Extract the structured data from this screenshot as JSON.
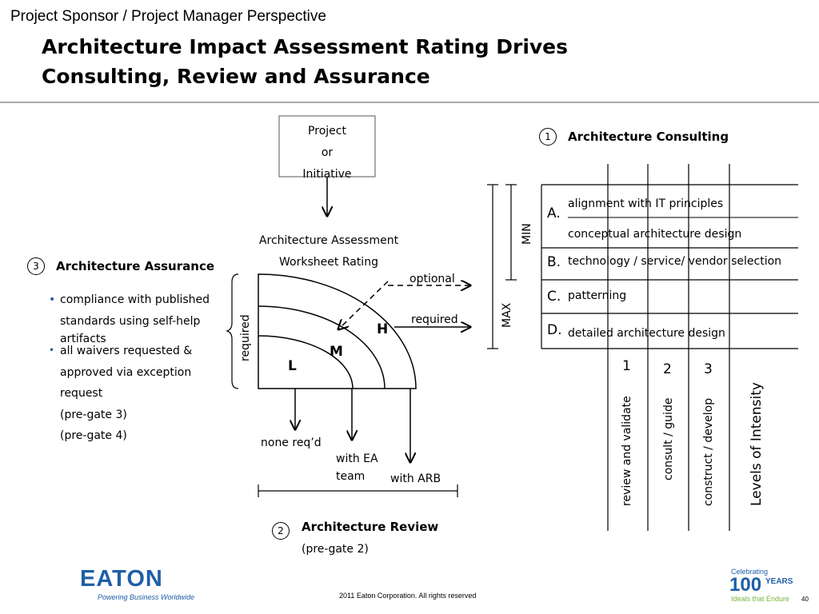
{
  "header": {
    "subtitle": "Project Sponsor / Project Manager Perspective",
    "title_line1": "Architecture Impact Assessment Rating Drives",
    "title_line2": "Consulting, Review and Assurance"
  },
  "project_box": {
    "line1": "Project",
    "line2": "or",
    "line3": "Initiative"
  },
  "worksheet": {
    "line1": "Architecture Assessment",
    "line2": "Worksheet Rating"
  },
  "ratings": {
    "high": "H",
    "medium": "M",
    "low": "L"
  },
  "labels": {
    "optional": "optional",
    "required_right": "required",
    "required_left": "required",
    "none_req": "none req’d",
    "with_ea_line1": "with EA",
    "with_ea_line2": "team",
    "with_arb": "with ARB"
  },
  "consulting": {
    "number": "1",
    "title": "Architecture Consulting",
    "min_label": "MIN",
    "max_label": "MAX",
    "rows": [
      {
        "letter": "A.",
        "items": [
          "alignment with IT principles",
          "conceptual architecture design"
        ]
      },
      {
        "letter": "B.",
        "items": [
          "technology / service/ vendor selection"
        ]
      },
      {
        "letter": "C.",
        "items": [
          "patterning"
        ]
      },
      {
        "letter": "D.",
        "items": [
          "detailed architecture design"
        ]
      }
    ],
    "levels": [
      {
        "number": "1",
        "label": "review and validate"
      },
      {
        "number": "2",
        "label": "consult / guide"
      },
      {
        "number": "3",
        "label": "construct / develop"
      }
    ],
    "levels_title": "Levels of Intensity"
  },
  "assurance": {
    "number": "3",
    "title": "Architecture Assurance",
    "bullet1_line1": "compliance with published",
    "bullet1_line2": "standards using self-help",
    "bullet1_line3": "artifacts",
    "bullet2_line1": "all waivers requested &",
    "bullet2_line2": "approved via exception",
    "bullet2_line3": "request",
    "pregate3": "(pre-gate 3)",
    "pregate4": "(pre-gate 4)"
  },
  "review": {
    "number": "2",
    "title": "Architecture Review",
    "pregate": "(pre-gate 2)"
  },
  "footer": {
    "logo_text": "EATON",
    "tagline": "Powering Business Worldwide",
    "copyright": "2011 Eaton Corporation. All rights reserved",
    "page_number": "40",
    "celebrating": "Celebrating",
    "years_number": "100",
    "years_word": "YEARS",
    "ideals": "Ideals that Endure"
  },
  "colors": {
    "eaton_blue": "#1f5fa6",
    "accent_green": "#7cb342",
    "rule_gray": "#aaaaaa"
  }
}
